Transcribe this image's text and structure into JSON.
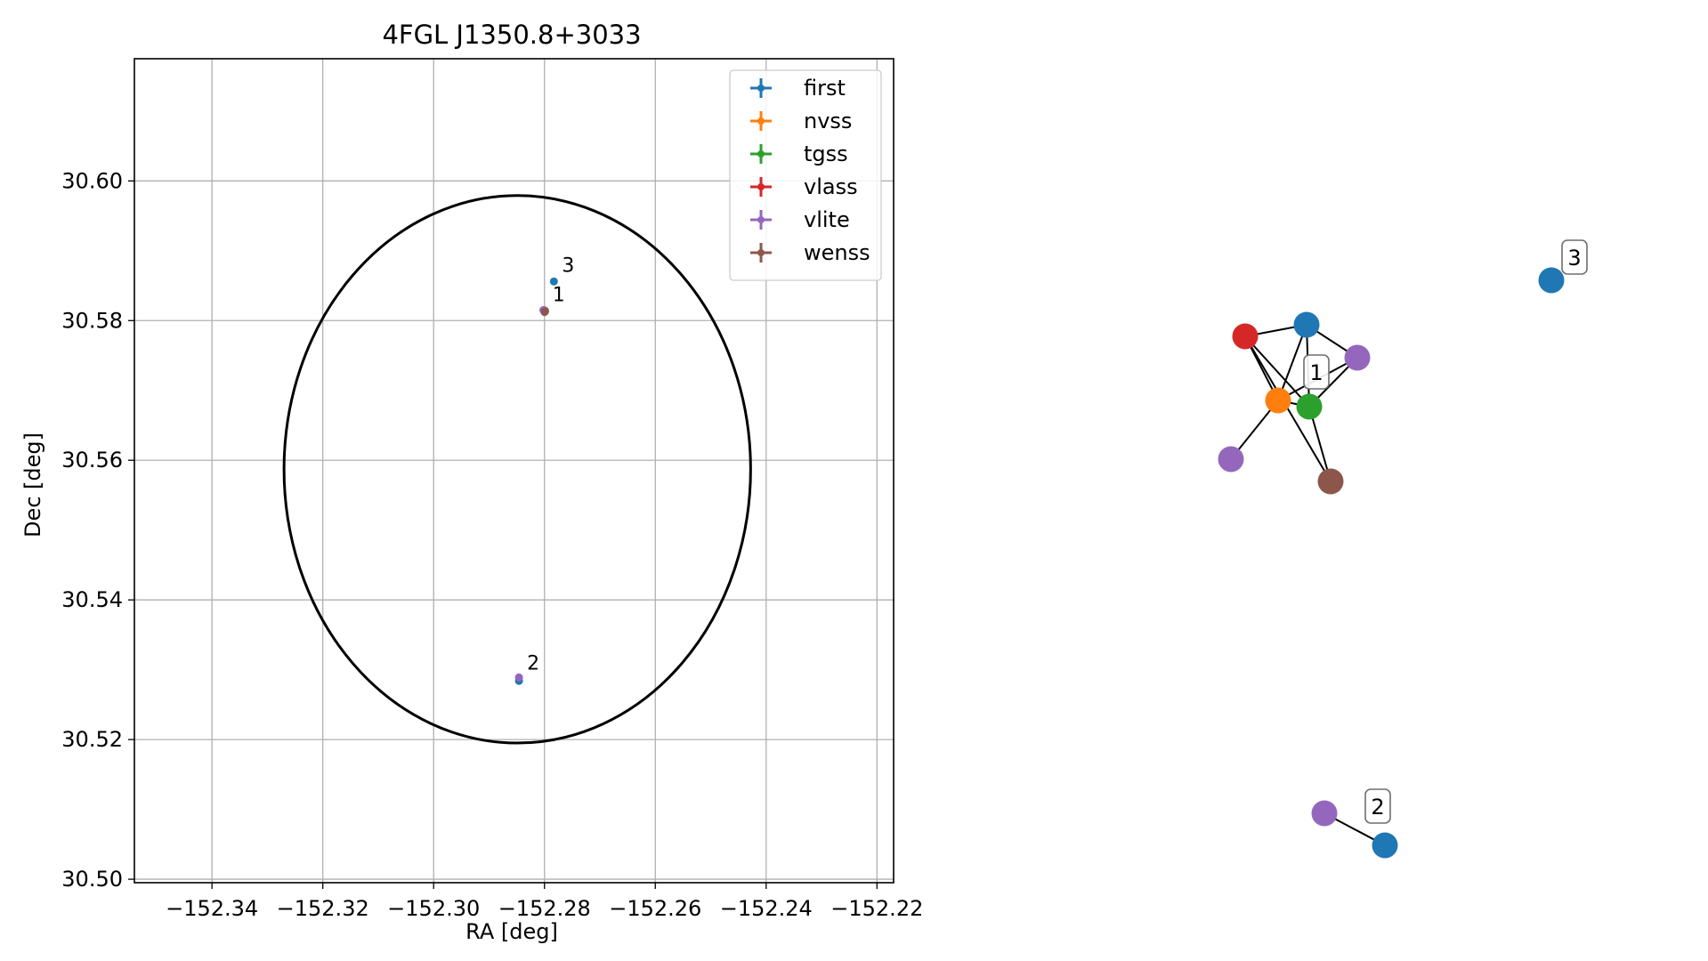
{
  "chart_data": [
    {
      "type": "scatter",
      "title": "4FGL J1350.8+3033",
      "xlabel": "RA [deg]",
      "ylabel": "Dec [deg]",
      "xlim": [
        -152.354,
        -152.217
      ],
      "ylim": [
        30.4995,
        30.6175
      ],
      "grid": true,
      "legend_position": "upper right",
      "x_ticks": [
        -152.34,
        -152.32,
        -152.3,
        -152.28,
        -152.26,
        -152.24,
        -152.22
      ],
      "x_tick_labels": [
        "−152.34",
        "−152.32",
        "−152.30",
        "−152.28",
        "−152.26",
        "−152.24",
        "−152.22"
      ],
      "y_ticks": [
        30.5,
        30.52,
        30.54,
        30.56,
        30.58,
        30.6
      ],
      "y_tick_labels": [
        "30.50",
        "30.52",
        "30.54",
        "30.56",
        "30.58",
        "30.60"
      ],
      "ellipse": {
        "center": [
          -152.2849,
          30.5587
        ],
        "semi_axis_ra": 0.0421,
        "semi_axis_dec": 0.0392,
        "color": "#000000"
      },
      "series": [
        {
          "name": "first",
          "color": "#1f77b4",
          "points": [
            [
              -152.2783,
              30.5856
            ],
            [
              -152.2801,
              30.5814
            ],
            [
              -152.2846,
              30.5284
            ]
          ]
        },
        {
          "name": "nvss",
          "color": "#ff7f0e",
          "points": [
            [
              -152.28,
              30.5813
            ]
          ]
        },
        {
          "name": "tgss",
          "color": "#2ca02c",
          "points": [
            [
              -152.2799,
              30.5814
            ]
          ]
        },
        {
          "name": "vlass",
          "color": "#d62728",
          "points": [
            [
              -152.2801,
              30.5815
            ]
          ]
        },
        {
          "name": "vlite",
          "color": "#9467bd",
          "points": [
            [
              -152.2802,
              30.5815
            ],
            [
              -152.28,
              30.5812
            ],
            [
              -152.2846,
              30.5289
            ]
          ]
        },
        {
          "name": "wenss",
          "color": "#8c564b",
          "points": [
            [
              -152.2799,
              30.5813
            ]
          ]
        }
      ],
      "annotations": [
        {
          "text": "3",
          "at": [
            -152.2783,
            30.5856
          ]
        },
        {
          "text": "1",
          "at": [
            -152.28,
            30.5814
          ]
        },
        {
          "text": "2",
          "at": [
            -152.2846,
            30.5286
          ]
        }
      ]
    },
    {
      "type": "network",
      "nodes": [
        {
          "id": "first-a",
          "color": "#1f77b4"
        },
        {
          "id": "vlass-a",
          "color": "#d62728"
        },
        {
          "id": "vlite-a",
          "color": "#9467bd"
        },
        {
          "id": "nvss-a",
          "color": "#ff7f0e"
        },
        {
          "id": "tgss-a",
          "color": "#2ca02c"
        },
        {
          "id": "vlite-b",
          "color": "#9467bd"
        },
        {
          "id": "wenss-a",
          "color": "#8c564b"
        },
        {
          "id": "first-3",
          "color": "#1f77b4"
        },
        {
          "id": "vlite-2",
          "color": "#9467bd"
        },
        {
          "id": "first-2",
          "color": "#1f77b4"
        }
      ],
      "edges": [
        [
          "first-a",
          "vlass-a"
        ],
        [
          "first-a",
          "vlite-a"
        ],
        [
          "first-a",
          "nvss-a"
        ],
        [
          "first-a",
          "tgss-a"
        ],
        [
          "vlass-a",
          "nvss-a"
        ],
        [
          "vlass-a",
          "tgss-a"
        ],
        [
          "vlass-a",
          "wenss-a"
        ],
        [
          "nvss-a",
          "tgss-a"
        ],
        [
          "nvss-a",
          "vlite-a"
        ],
        [
          "nvss-a",
          "vlite-b"
        ],
        [
          "tgss-a",
          "vlite-a"
        ],
        [
          "tgss-a",
          "wenss-a"
        ],
        [
          "vlite-2",
          "first-2"
        ]
      ],
      "group_labels": [
        {
          "text": "1",
          "node": "tgss-a"
        },
        {
          "text": "3",
          "node": "first-3"
        },
        {
          "text": "2",
          "node": "first-2"
        }
      ]
    }
  ]
}
